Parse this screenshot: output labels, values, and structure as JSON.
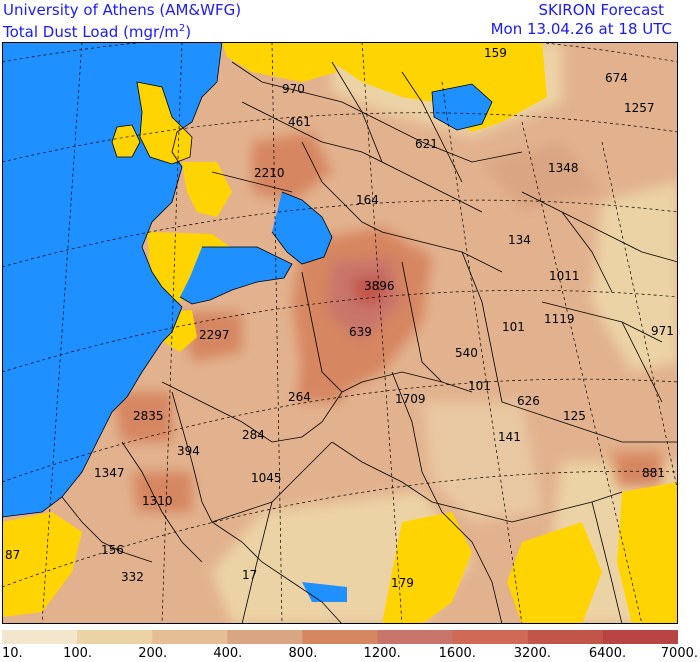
{
  "header": {
    "institution": "University of Athens (AM&WFG)",
    "field": "Total Dust Load (mgr/m",
    "field_sup": "2",
    "field_end": ")",
    "product": "SKIRON Forecast",
    "valid_time": "Mon 13.04.26 at 18 UTC"
  },
  "colors": {
    "sea": "#1e90ff",
    "below_threshold": "#ffd400",
    "border": "#000000"
  },
  "legend": {
    "levels": [
      "10.",
      "100.",
      "200.",
      "400.",
      "800.",
      "1200.",
      "1600.",
      "3200.",
      "6400.",
      "7000."
    ],
    "colors": [
      "#f4e6cc",
      "#ecd3a6",
      "#e6be96",
      "#daa582",
      "#d68660",
      "#c9746a",
      "#d06a57",
      "#c2554a",
      "#b84543"
    ]
  },
  "values": [
    {
      "text": "159"
    },
    {
      "text": "674"
    },
    {
      "text": "970"
    },
    {
      "text": "1257"
    },
    {
      "text": "461"
    },
    {
      "text": "621"
    },
    {
      "text": "1348"
    },
    {
      "text": "2210"
    },
    {
      "text": "164"
    },
    {
      "text": "134"
    },
    {
      "text": "1011"
    },
    {
      "text": "3896"
    },
    {
      "text": "2297"
    },
    {
      "text": "639"
    },
    {
      "text": "101"
    },
    {
      "text": "1119"
    },
    {
      "text": "971"
    },
    {
      "text": "540"
    },
    {
      "text": "101"
    },
    {
      "text": "264"
    },
    {
      "text": "1709"
    },
    {
      "text": "626"
    },
    {
      "text": "125"
    },
    {
      "text": "2835"
    },
    {
      "text": "284"
    },
    {
      "text": "141"
    },
    {
      "text": "394"
    },
    {
      "text": "1347"
    },
    {
      "text": "1045"
    },
    {
      "text": "881"
    },
    {
      "text": "1310"
    },
    {
      "text": "87"
    },
    {
      "text": "156"
    },
    {
      "text": "332"
    },
    {
      "text": "17"
    },
    {
      "text": "179"
    }
  ]
}
